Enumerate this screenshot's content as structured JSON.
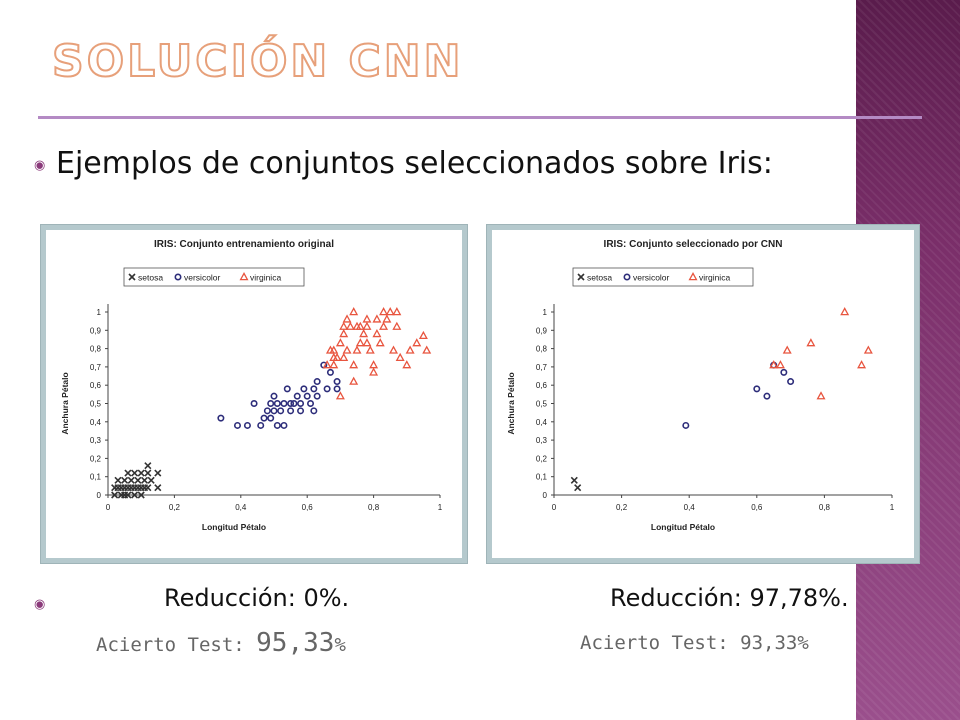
{
  "slide": {
    "title": "SOLUCIÓN CNN",
    "bullet_text": "Ejemplos de conjuntos seleccionados sobre Iris:",
    "left_reduction": "Reducción: 0%.",
    "right_reduction": "Reducción: 97,78%.",
    "left_acc_label": "Acierto Test: ",
    "left_acc_value": "95,33",
    "left_acc_pct": "%",
    "right_acc": "Acierto Test: 93,33%",
    "colors": {
      "accent": "#8a3a7a",
      "band": "#7b2f6a",
      "panel_bg": "#b5c9cd"
    }
  },
  "chart_data": [
    {
      "type": "scatter",
      "title": "IRIS: Conjunto entrenamiento original",
      "xlabel": "Longitud Pétalo",
      "ylabel": "Anchura Pétalo",
      "xticks": [
        "0",
        "0,2",
        "0,4",
        "0,6",
        "0,8",
        "1"
      ],
      "yticks": [
        "0",
        "0,1",
        "0,2",
        "0,3",
        "0,4",
        "0,5",
        "0,6",
        "0,7",
        "0,8",
        "0,9",
        "1"
      ],
      "xlim": [
        0,
        1
      ],
      "ylim": [
        0,
        1
      ],
      "grid": false,
      "legend_position": "top",
      "series": [
        {
          "name": "setosa",
          "marker": "x",
          "color": "#333333",
          "points": [
            [
              0.02,
              0.0
            ],
            [
              0.03,
              0.04
            ],
            [
              0.04,
              0.0
            ],
            [
              0.04,
              0.04
            ],
            [
              0.05,
              0.04
            ],
            [
              0.05,
              0.08
            ],
            [
              0.06,
              0.12
            ],
            [
              0.06,
              0.0
            ],
            [
              0.06,
              0.04
            ],
            [
              0.07,
              0.08
            ],
            [
              0.07,
              0.04
            ],
            [
              0.08,
              0.04
            ],
            [
              0.08,
              0.12
            ],
            [
              0.08,
              0.0
            ],
            [
              0.09,
              0.08
            ],
            [
              0.09,
              0.04
            ],
            [
              0.1,
              0.12
            ],
            [
              0.1,
              0.04
            ],
            [
              0.11,
              0.08
            ],
            [
              0.11,
              0.04
            ],
            [
              0.12,
              0.16
            ],
            [
              0.12,
              0.12
            ],
            [
              0.12,
              0.04
            ],
            [
              0.15,
              0.04
            ],
            [
              0.15,
              0.12
            ],
            [
              0.03,
              0.08
            ],
            [
              0.05,
              0.0
            ],
            [
              0.1,
              0.0
            ],
            [
              0.13,
              0.08
            ],
            [
              0.02,
              0.04
            ]
          ]
        },
        {
          "name": "versicolor",
          "marker": "o",
          "color": "#2d2d7a",
          "points": [
            [
              0.34,
              0.42
            ],
            [
              0.39,
              0.38
            ],
            [
              0.42,
              0.38
            ],
            [
              0.44,
              0.5
            ],
            [
              0.46,
              0.38
            ],
            [
              0.47,
              0.42
            ],
            [
              0.48,
              0.46
            ],
            [
              0.49,
              0.42
            ],
            [
              0.49,
              0.5
            ],
            [
              0.5,
              0.46
            ],
            [
              0.5,
              0.54
            ],
            [
              0.51,
              0.5
            ],
            [
              0.51,
              0.38
            ],
            [
              0.52,
              0.46
            ],
            [
              0.53,
              0.5
            ],
            [
              0.53,
              0.38
            ],
            [
              0.54,
              0.58
            ],
            [
              0.55,
              0.5
            ],
            [
              0.55,
              0.46
            ],
            [
              0.56,
              0.5
            ],
            [
              0.57,
              0.54
            ],
            [
              0.58,
              0.5
            ],
            [
              0.58,
              0.46
            ],
            [
              0.59,
              0.58
            ],
            [
              0.6,
              0.54
            ],
            [
              0.61,
              0.5
            ],
            [
              0.62,
              0.46
            ],
            [
              0.62,
              0.58
            ],
            [
              0.63,
              0.62
            ],
            [
              0.63,
              0.54
            ],
            [
              0.65,
              0.71
            ],
            [
              0.66,
              0.58
            ],
            [
              0.67,
              0.67
            ],
            [
              0.69,
              0.62
            ],
            [
              0.69,
              0.58
            ]
          ]
        },
        {
          "name": "virginica",
          "marker": "triangle",
          "color": "#e8553f",
          "points": [
            [
              0.66,
              0.71
            ],
            [
              0.67,
              0.79
            ],
            [
              0.68,
              0.71
            ],
            [
              0.68,
              0.79
            ],
            [
              0.69,
              0.75
            ],
            [
              0.7,
              0.83
            ],
            [
              0.7,
              0.54
            ],
            [
              0.71,
              0.92
            ],
            [
              0.71,
              0.75
            ],
            [
              0.72,
              0.79
            ],
            [
              0.72,
              0.96
            ],
            [
              0.73,
              0.92
            ],
            [
              0.74,
              0.62
            ],
            [
              0.74,
              0.71
            ],
            [
              0.75,
              0.79
            ],
            [
              0.75,
              0.92
            ],
            [
              0.76,
              0.83
            ],
            [
              0.77,
              0.88
            ],
            [
              0.78,
              0.83
            ],
            [
              0.78,
              0.96
            ],
            [
              0.79,
              0.79
            ],
            [
              0.8,
              0.71
            ],
            [
              0.8,
              0.67
            ],
            [
              0.81,
              0.88
            ],
            [
              0.82,
              0.83
            ],
            [
              0.83,
              0.92
            ],
            [
              0.84,
              0.96
            ],
            [
              0.85,
              1.0
            ],
            [
              0.86,
              0.79
            ],
            [
              0.87,
              0.92
            ],
            [
              0.88,
              0.75
            ],
            [
              0.9,
              0.71
            ],
            [
              0.91,
              0.79
            ],
            [
              0.93,
              0.83
            ],
            [
              0.95,
              0.87
            ],
            [
              0.96,
              0.79
            ],
            [
              0.74,
              1.0
            ],
            [
              0.83,
              1.0
            ],
            [
              0.87,
              1.0
            ],
            [
              0.81,
              0.96
            ],
            [
              0.76,
              0.92
            ],
            [
              0.71,
              0.88
            ],
            [
              0.78,
              0.92
            ],
            [
              0.68,
              0.75
            ]
          ]
        }
      ]
    },
    {
      "type": "scatter",
      "title": "IRIS: Conjunto seleccionado por CNN",
      "xlabel": "Longitud Pétalo",
      "ylabel": "Anchura Pétalo",
      "xticks": [
        "0",
        "0,2",
        "0,4",
        "0,6",
        "0,8",
        "1"
      ],
      "yticks": [
        "0",
        "0,1",
        "0,2",
        "0,3",
        "0,4",
        "0,5",
        "0,6",
        "0,7",
        "0,8",
        "0,9",
        "1"
      ],
      "xlim": [
        0,
        1
      ],
      "ylim": [
        0,
        1
      ],
      "grid": false,
      "legend_position": "top",
      "series": [
        {
          "name": "setosa",
          "marker": "x",
          "color": "#333333",
          "points": [
            [
              0.06,
              0.08
            ],
            [
              0.07,
              0.04
            ]
          ]
        },
        {
          "name": "versicolor",
          "marker": "o",
          "color": "#2d2d7a",
          "points": [
            [
              0.39,
              0.38
            ],
            [
              0.6,
              0.58
            ],
            [
              0.63,
              0.54
            ],
            [
              0.65,
              0.71
            ],
            [
              0.68,
              0.67
            ],
            [
              0.7,
              0.62
            ]
          ]
        },
        {
          "name": "virginica",
          "marker": "triangle",
          "color": "#e8553f",
          "points": [
            [
              0.65,
              0.71
            ],
            [
              0.67,
              0.71
            ],
            [
              0.69,
              0.79
            ],
            [
              0.76,
              0.83
            ],
            [
              0.79,
              0.54
            ],
            [
              0.86,
              1.0
            ],
            [
              0.91,
              0.71
            ],
            [
              0.93,
              0.79
            ]
          ]
        }
      ]
    }
  ]
}
